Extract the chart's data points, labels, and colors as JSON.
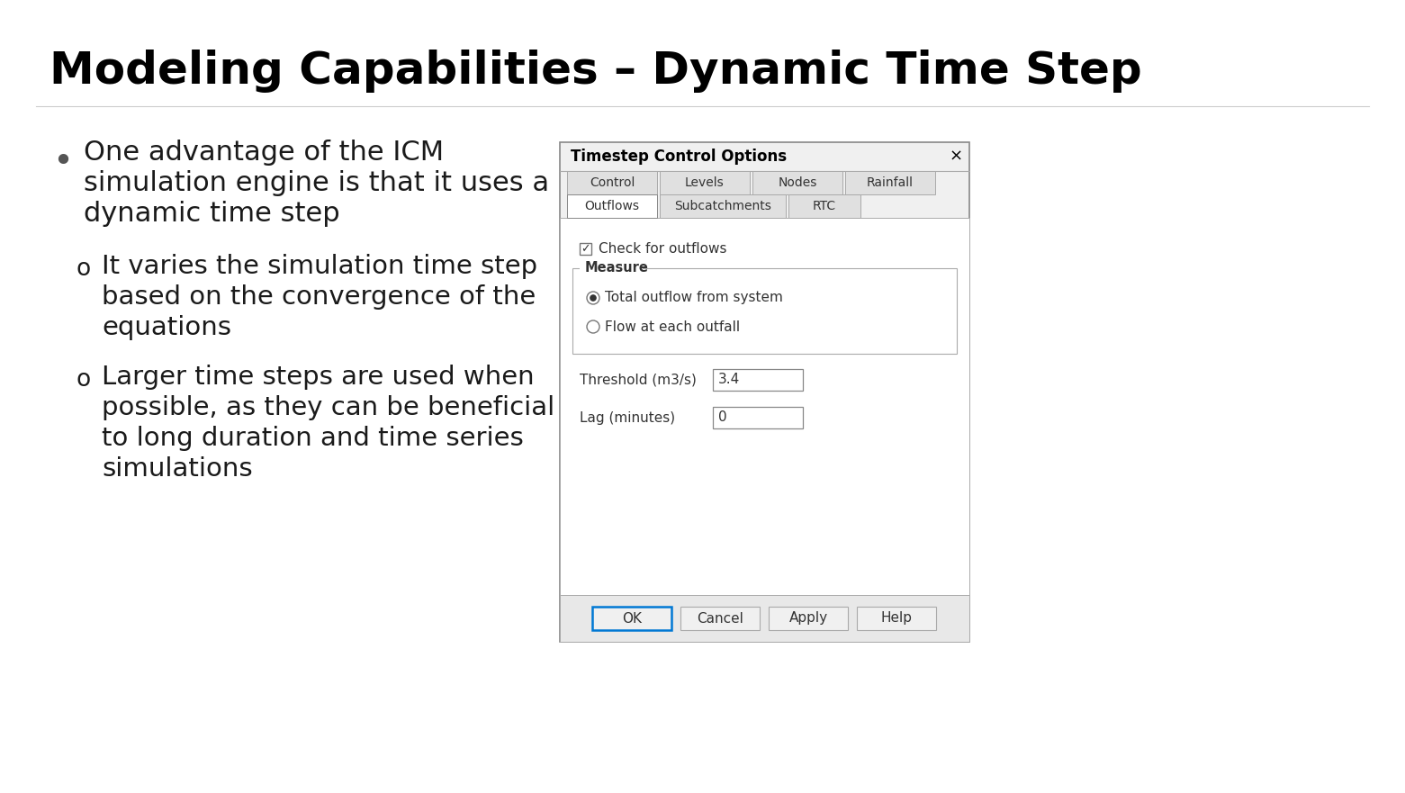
{
  "title": "Modeling Capabilities – Dynamic Time Step",
  "background_color": "#ffffff",
  "title_color": "#000000",
  "title_fontsize": 36,
  "bullet1_lines": [
    "One advantage of the ICM",
    "simulation engine is that it uses a",
    "dynamic time step"
  ],
  "sub_bullet1_lines": [
    "It varies the simulation time step",
    "based on the convergence of the",
    "equations"
  ],
  "sub_bullet2_lines": [
    "Larger time steps are used when",
    "possible, as they can be beneficial",
    "to long duration and time series",
    "simulations"
  ],
  "dialog": {
    "title": "Timestep Control Options",
    "bg_color": "#f0f0f0",
    "border_color": "#aaaaaa",
    "tab_row1": [
      "Control",
      "Levels",
      "Nodes",
      "Rainfall"
    ],
    "tab_row2": [
      "Outflows",
      "Subcatchments",
      "RTC"
    ],
    "active_tab2": "Outflows",
    "checkbox_label": "Check for outflows",
    "group_label": "Measure",
    "radio1": "Total outflow from system",
    "radio2": "Flow at each outfall",
    "field1_label": "Threshold (m3/s)",
    "field1_value": "3.4",
    "field2_label": "Lag (minutes)",
    "field2_value": "0",
    "buttons": [
      "OK",
      "Cancel",
      "Apply",
      "Help"
    ],
    "ok_border_color": "#0078d4"
  },
  "text_color": "#1a1a1a",
  "body_fontsize": 22,
  "sub_fontsize": 21
}
